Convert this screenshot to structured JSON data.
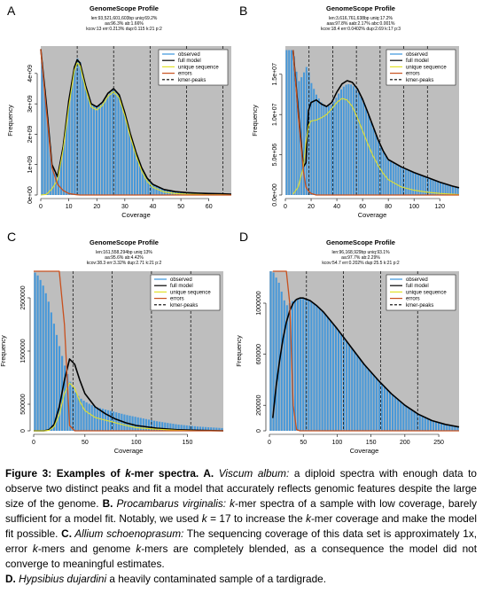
{
  "panels": [
    {
      "letter": "A",
      "title": "GenomeScope Profile",
      "stats": [
        "len:93,521,601,603bp uniq:69.2%",
        "aa:96.3% ab:1.66%",
        "kcov:13 err:0.213% dup:0.115 k:21 p:2"
      ],
      "xlabel": "Coverage",
      "ylabel": "Frequency",
      "xticks": [
        0,
        10,
        20,
        30,
        40,
        50,
        60
      ],
      "yticks": [
        "0e+00",
        "1e+09",
        "2e+09",
        "3e+09",
        "4e+09"
      ],
      "legend": [
        "observed",
        "full model",
        "unique sequence",
        "errors",
        "kmer-peaks"
      ]
    },
    {
      "letter": "B",
      "title": "GenomeScope Profile",
      "stats": [
        "len:3,616,761,638bp uniq:17.2%",
        "aaa:97.8% aab:2.17% abc:0.001%",
        "kcov:18.4 err:0.0402% dup:2.69 k:17 p:3"
      ],
      "xlabel": "Coverage",
      "ylabel": "Frequency",
      "xticks": [
        0,
        20,
        40,
        60,
        80,
        100,
        120
      ],
      "yticks": [
        "0.0e+00",
        "5.0e+06",
        "1.0e+07",
        "1.5e+07"
      ],
      "legend": [
        "observed",
        "full model",
        "unique sequence",
        "errors",
        "kmer-peaks"
      ]
    },
    {
      "letter": "C",
      "title": "GenomeScope Profile",
      "stats": [
        "len:161,558,294bp uniq:13%",
        "aa:95.6% ab:4.42%",
        "kcov:38.3 err:3.32% dup:2.71 k:21 p:2"
      ],
      "xlabel": "Coverage",
      "ylabel": "Frequency",
      "xticks": [
        0,
        50,
        100,
        150
      ],
      "yticks": [
        "0",
        "500000",
        "1500000",
        "2500000"
      ],
      "legend": [
        "observed",
        "full model",
        "unique sequence",
        "errors",
        "kmer-peaks"
      ]
    },
    {
      "letter": "D",
      "title": "GenomeScope Profile",
      "stats": [
        "len:96,168,929bp uniq:93.1%",
        "aa:97.7% ab:2.29%",
        "kcov:54.7 err:0.202% dup:25.5 k:21 p:2"
      ],
      "xlabel": "Coverage",
      "ylabel": "Frequency",
      "xticks": [
        0,
        50,
        100,
        150,
        200,
        250
      ],
      "yticks": [
        "0",
        "200000",
        "600000",
        "1000000"
      ],
      "legend": [
        "observed",
        "full model",
        "unique sequence",
        "errors",
        "kmer-peaks"
      ]
    }
  ],
  "caption": {
    "fig_label": "Figure 3: Examples of ",
    "fig_k": "k",
    "fig_rest": "-mer spectra. A.",
    "a_species": " Viscum album:",
    "a_text": " a diploid spectra with enough data to observe two distinct peaks and fit a model that accurately reflects genomic features despite the large size of the genome. ",
    "b_label": "B.",
    "b_species": " Procambarus virginalis:",
    "b_text1": " ",
    "b_k1": "k",
    "b_text2": "-mer spectra of a sample with low coverage, barely sufficient for a model fit. Notably, we used ",
    "b_k2": "k",
    "b_text3": " = 17 to increase the ",
    "b_k3": "k",
    "b_text4": "-mer coverage and make the model fit possible. ",
    "c_label": "C.",
    "c_species": " Allium schoenoprasum:",
    "c_text1": " The sequencing coverage of this data set is approximately 1x, error ",
    "c_k1": "k",
    "c_text2": "-mers and genome ",
    "c_k2": "k",
    "c_text3": "-mers are completely blended, as a consequence the model did not converge to meaningful estimates.",
    "d_label": "D.",
    "d_species": " Hypsibius dujardini",
    "d_text": " a heavily contaminated sample of a tardigrade."
  },
  "colors": {
    "plot_bg": "#bebebe",
    "observed": "#3a94dc",
    "full_model": "#000000",
    "unique": "#e2e22a",
    "errors": "#c8501e",
    "peaks": "#000000"
  },
  "chart_data": [
    {
      "type": "area",
      "panel": "A",
      "xlim": [
        0,
        68
      ],
      "ylim": [
        0,
        4900000000.0
      ],
      "x": [
        0,
        2,
        4,
        6,
        8,
        10,
        12,
        13,
        14,
        16,
        18,
        20,
        22,
        24,
        26,
        28,
        30,
        32,
        34,
        36,
        38,
        40,
        44,
        48,
        52,
        56,
        60,
        64,
        68
      ],
      "series": [
        {
          "name": "observed",
          "values": [
            4800000000.0,
            3000000000.0,
            1000000000.0,
            600000000.0,
            1600000000.0,
            3000000000.0,
            4200000000.0,
            4500000000.0,
            4400000000.0,
            3600000000.0,
            3000000000.0,
            2900000000.0,
            3000000000.0,
            3300000000.0,
            3500000000.0,
            3300000000.0,
            2700000000.0,
            2000000000.0,
            1400000000.0,
            900000000.0,
            550000000.0,
            350000000.0,
            180000000.0,
            110000000.0,
            80000000.0,
            60000000.0,
            50000000.0,
            40000000.0,
            30000000.0
          ]
        },
        {
          "name": "full model",
          "values": [
            4800000000.0,
            3000000000.0,
            1000000000.0,
            600000000.0,
            1600000000.0,
            3100000000.0,
            4200000000.0,
            4450000000.0,
            4350000000.0,
            3600000000.0,
            3000000000.0,
            2900000000.0,
            3050000000.0,
            3350000000.0,
            3500000000.0,
            3300000000.0,
            2700000000.0,
            2000000000.0,
            1400000000.0,
            900000000.0,
            550000000.0,
            350000000.0,
            180000000.0,
            110000000.0,
            80000000.0,
            60000000.0,
            50000000.0,
            40000000.0,
            30000000.0
          ]
        },
        {
          "name": "unique sequence",
          "values": [
            0,
            20000000.0,
            200000000.0,
            500000000.0,
            1500000000.0,
            2900000000.0,
            4100000000.0,
            4350000000.0,
            4250000000.0,
            3500000000.0,
            2900000000.0,
            2800000000.0,
            2950000000.0,
            3250000000.0,
            3400000000.0,
            3200000000.0,
            2600000000.0,
            1900000000.0,
            1300000000.0,
            800000000.0,
            450000000.0,
            250000000.0,
            100000000.0,
            50000000.0,
            30000000.0,
            20000000.0,
            10000000.0,
            10000000.0,
            0.0
          ]
        },
        {
          "name": "errors",
          "values": [
            4800000000.0,
            2800000000.0,
            900000000.0,
            350000000.0,
            150000000.0,
            50000000.0,
            20000000.0,
            10000000.0,
            0.0,
            0.0,
            0.0,
            0.0,
            0.0,
            0.0,
            0.0,
            0.0,
            0.0,
            0.0,
            0.0,
            0.0,
            0.0,
            0.0,
            0.0,
            0.0,
            0.0,
            0.0,
            0.0,
            0.0,
            0.0
          ]
        }
      ],
      "kmer_peaks": [
        13,
        26,
        39,
        52,
        65
      ]
    },
    {
      "type": "area",
      "panel": "B",
      "xlim": [
        0,
        135
      ],
      "ylim": [
        0,
        18500000.0
      ],
      "x": [
        6,
        10,
        14,
        16,
        18,
        20,
        24,
        28,
        32,
        36,
        40,
        44,
        48,
        52,
        56,
        60,
        64,
        68,
        72,
        76,
        80,
        90,
        100,
        110,
        120,
        130,
        135
      ],
      "series": [
        {
          "name": "observed",
          "values": [
            18000000.0,
            14000000.0,
            15000000.0,
            16000000.0,
            15500000.0,
            14000000.0,
            12500000.0,
            11500000.0,
            11000000.0,
            11200000.0,
            12200000.0,
            13300000.0,
            13800000.0,
            13700000.0,
            13000000.0,
            11800000.0,
            10200000.0,
            8500000.0,
            6800000.0,
            5400000.0,
            4300000.0,
            3400000.0,
            2800000.0,
            2200000.0,
            1600000.0,
            1100000.0,
            900000.0
          ]
        },
        {
          "name": "full model",
          "values": [
            18000000.0,
            10500000.0,
            3500000.0,
            4000000.0,
            10500000.0,
            11500000.0,
            11800000.0,
            11300000.0,
            11000000.0,
            11500000.0,
            12800000.0,
            13800000.0,
            14200000.0,
            14000000.0,
            13200000.0,
            11900000.0,
            10300000.0,
            8600000.0,
            6900000.0,
            5500000.0,
            4400000.0,
            3500000.0,
            2800000.0,
            2200000.0,
            1600000.0,
            1100000.0,
            900000.0
          ]
        },
        {
          "name": "unique sequence",
          "values": [
            100000.0,
            1000000.0,
            3500000.0,
            6500000.0,
            8600000.0,
            9200000.0,
            9300000.0,
            9600000.0,
            10000000.0,
            10700000.0,
            11500000.0,
            12000000.0,
            11800000.0,
            11000000.0,
            9600000.0,
            8000000.0,
            6400000.0,
            4900000.0,
            3700000.0,
            2700000.0,
            1900000.0,
            1000000.0,
            600000.0,
            350000.0,
            200000.0,
            100000.0,
            50000.0
          ]
        },
        {
          "name": "errors",
          "values": [
            18000000.0,
            10000000.0,
            3000000.0,
            1000000.0,
            500000.0,
            200000.0,
            0.0,
            0.0,
            0.0,
            0.0,
            0.0,
            0.0,
            0.0,
            0.0,
            0.0,
            0.0,
            0.0,
            0.0,
            0.0,
            0.0,
            0.0,
            0.0,
            0.0,
            0.0,
            0.0,
            0.0,
            0.0
          ]
        }
      ],
      "kmer_peaks": [
        18.4,
        36.8,
        55.2,
        73.6,
        92,
        110.4
      ]
    },
    {
      "type": "area",
      "panel": "C",
      "xlim": [
        0,
        185
      ],
      "ylim": [
        0,
        3000000.0
      ],
      "x": [
        0,
        5,
        10,
        15,
        20,
        25,
        30,
        35,
        40,
        45,
        50,
        60,
        70,
        80,
        90,
        100,
        120,
        140,
        160,
        185
      ],
      "series": [
        {
          "name": "observed",
          "values": [
            3000000.0,
            2900000.0,
            2700000.0,
            2400000.0,
            2000000.0,
            1600000.0,
            1250000.0,
            950000.0,
            750000.0,
            620000.0,
            550000.0,
            450000.0,
            400000.0,
            350000.0,
            300000.0,
            260000.0,
            180000.0,
            120000.0,
            80000.0,
            50000.0
          ]
        },
        {
          "name": "full model",
          "values": [
            0,
            0,
            0,
            20000.0,
            120000.0,
            450000.0,
            950000.0,
            1350000.0,
            1250000.0,
            950000.0,
            700000.0,
            450000.0,
            320000.0,
            220000.0,
            150000.0,
            100000.0,
            50000.0,
            20000.0,
            10000.0,
            0
          ]
        },
        {
          "name": "unique sequence",
          "values": [
            0,
            0,
            0,
            10000.0,
            80000.0,
            300000.0,
            700000.0,
            900000.0,
            800000.0,
            550000.0,
            380000.0,
            250000.0,
            200000.0,
            150000.0,
            100000.0,
            60000.0,
            30000.0,
            10000.0,
            0,
            0
          ]
        },
        {
          "name": "errors",
          "values": [
            3000000.0,
            3000000.0,
            3000000.0,
            3000000.0,
            3000000.0,
            3000000.0,
            2000000.0,
            100000.0,
            0,
            0,
            0,
            0,
            0,
            0,
            0,
            0,
            0,
            0,
            0,
            0
          ]
        }
      ],
      "kmer_peaks": [
        38.3,
        76.6,
        114.9,
        153.2
      ]
    },
    {
      "type": "area",
      "panel": "D",
      "xlim": [
        0,
        280
      ],
      "ylim": [
        0,
        1250000.0
      ],
      "x": [
        5,
        10,
        15,
        20,
        25,
        30,
        35,
        40,
        45,
        50,
        60,
        70,
        80,
        100,
        120,
        140,
        160,
        180,
        200,
        220,
        240,
        260,
        280
      ],
      "series": [
        {
          "name": "observed",
          "values": [
            1250000.0,
            1200000.0,
            1150000.0,
            1050000.0,
            980000.0,
            1000000.0,
            1020000.0,
            1030000.0,
            1040000.0,
            1040000.0,
            1020000.0,
            980000.0,
            930000.0,
            800000.0,
            660000.0,
            520000.0,
            400000.0,
            290000.0,
            200000.0,
            130000.0,
            80000.0,
            50000.0,
            30000.0
          ]
        },
        {
          "name": "full model",
          "values": [
            100000.0,
            350000.0,
            550000.0,
            720000.0,
            850000.0,
            940000.0,
            1000000.0,
            1030000.0,
            1040000.0,
            1040000.0,
            1020000.0,
            980000.0,
            930000.0,
            800000.0,
            660000.0,
            520000.0,
            400000.0,
            290000.0,
            200000.0,
            130000.0,
            80000.0,
            50000.0,
            30000.0
          ]
        },
        {
          "name": "errors",
          "values": [
            1250000.0,
            1250000.0,
            1250000.0,
            1250000.0,
            1250000.0,
            1000000.0,
            200000.0,
            10000.0,
            0,
            0,
            0,
            0,
            0,
            0,
            0,
            0,
            0,
            0,
            0,
            0,
            0,
            0,
            0
          ]
        }
      ],
      "kmer_peaks": [
        54.7,
        109.4,
        164.1,
        218.8
      ]
    }
  ]
}
